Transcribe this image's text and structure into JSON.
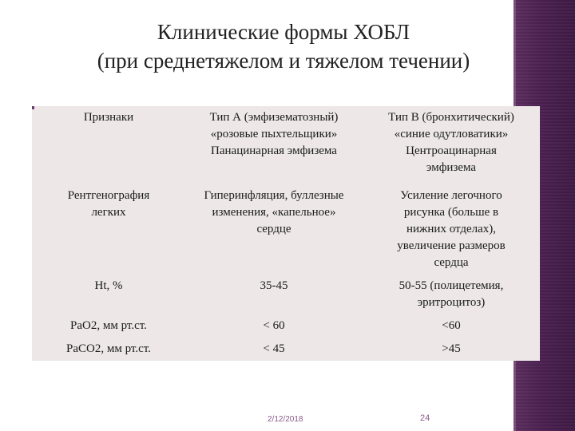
{
  "slide": {
    "title_line1": "Клинические формы ХОБЛ",
    "title_line2": "(при среднетяжелом и тяжелом течении)",
    "date": "2/12/2018",
    "page_number": "24"
  },
  "table": {
    "rows": [
      {
        "c1": [
          "Признаки"
        ],
        "c2": [
          "Тип А (эмфизематозный)",
          "«розовые пыхтельщики»",
          "Панацинарная эмфизема"
        ],
        "c3": [
          "Тип В (бронхитический)",
          "«синие одутловатики»",
          "Центроацинарная",
          "эмфизема"
        ]
      },
      {
        "c1": [
          "Рентгенография",
          "легких"
        ],
        "c2": [
          "Гиперинфляция, буллезные",
          "изменения, «капельное»",
          "сердце"
        ],
        "c3": [
          "Усиление легочного",
          "рисунка (больше в",
          "нижних отделах),",
          "увеличение размеров",
          "сердца"
        ]
      },
      {
        "c1": [
          "Ht, %"
        ],
        "c2": [
          "35-45"
        ],
        "c3": [
          "50-55 (полицетемия,",
          "эритроцитоз)"
        ]
      },
      {
        "c1": [
          "PaO2, мм рт.ст."
        ],
        "c2": [
          "< 60"
        ],
        "c3": [
          "<60"
        ]
      },
      {
        "c1": [
          "PaCO2, мм рт.ст."
        ],
        "c2": [
          "< 45"
        ],
        "c3": [
          ">45"
        ]
      }
    ]
  },
  "colors": {
    "table_bg": "#ede7e7",
    "sidebar": "#4b2050",
    "footer_text": "#8a5a8a"
  }
}
